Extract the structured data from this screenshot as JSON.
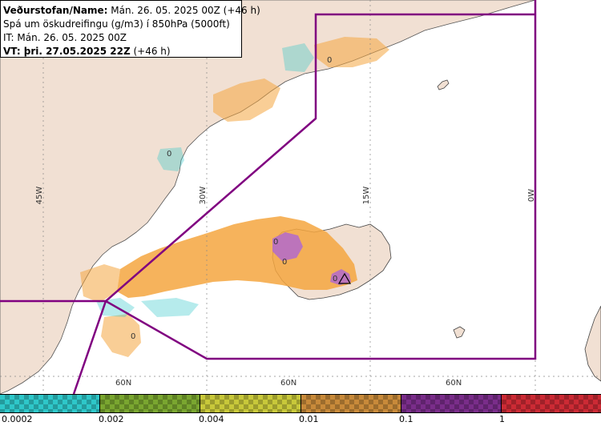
{
  "info": {
    "line1": "Veðurstofan/Name: Mán. 26. 05. 2025 00Z (+46 h)",
    "line2": "Spá um öskudreifingu (g/m3) í 850hPa (5000ft)",
    "line3": "IT: Mán. 26. 05. 2025 00Z",
    "line4_label": "VT: þri. 27.05.2025 22Z",
    "line4_suffix": " (+46 h)"
  },
  "grid": {
    "lon_labels": [
      "45W",
      "30W",
      "15W",
      "0W"
    ],
    "lat_labels": [
      "60N",
      "60N",
      "60N"
    ]
  },
  "contour_labels": [
    "0",
    "0",
    "0",
    "0",
    "0",
    "0"
  ],
  "legend": {
    "labels": [
      "0.0002",
      "0.002",
      "0.004",
      "0.01",
      "0.1",
      "1"
    ],
    "colors": [
      "#2ec7c9",
      "#7aa630",
      "#c8c83a",
      "#c88a3a",
      "#7a2d8a",
      "#cc2a34"
    ]
  },
  "colors": {
    "land": "#f1e0d3",
    "sea": "#ffffff",
    "boundary": "#800080",
    "ash_main": "#f4a640",
    "ash_high": "#b26acc"
  }
}
